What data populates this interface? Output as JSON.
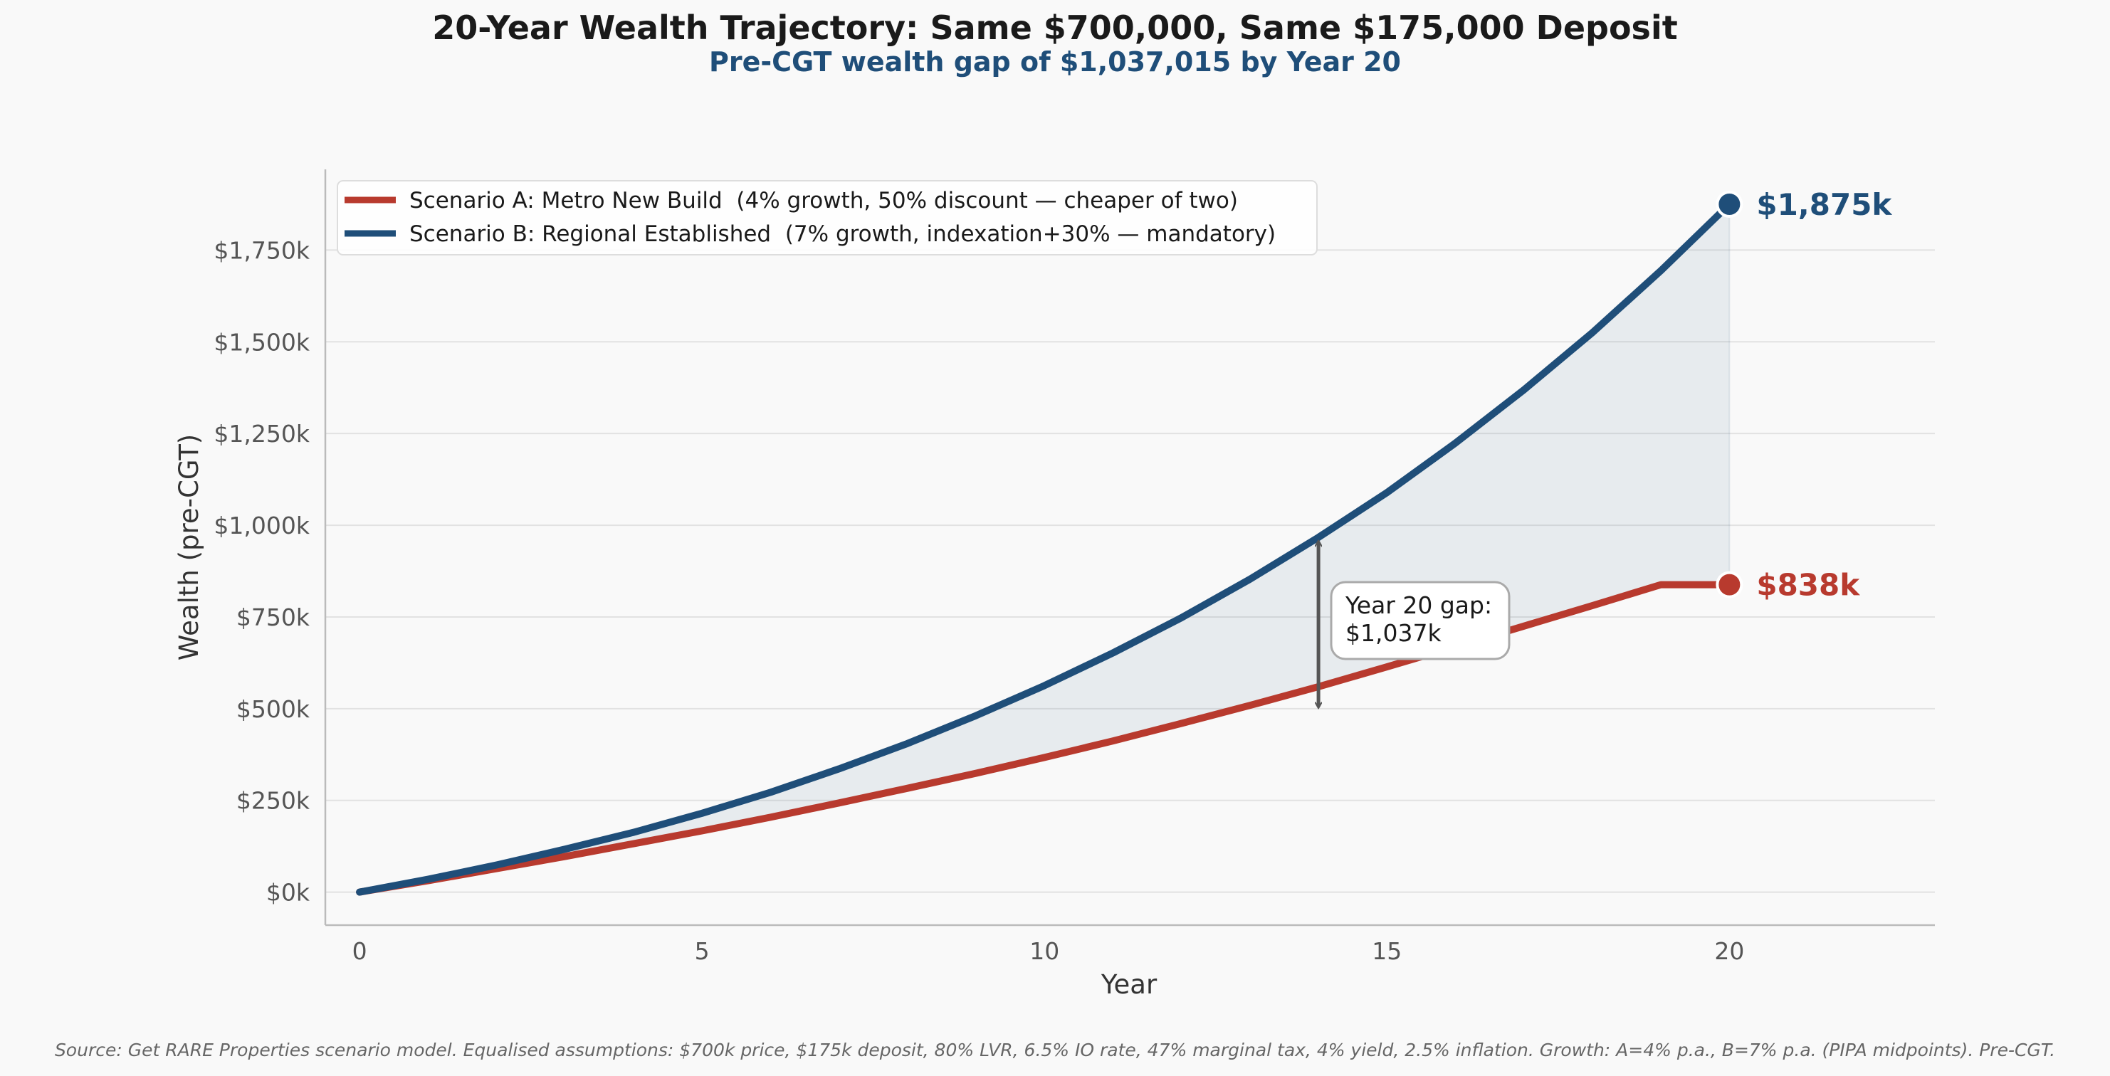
{
  "chart_data": {
    "type": "line",
    "title": "20-Year Wealth Trajectory: Same $700,000, Same $175,000 Deposit",
    "subtitle": "Pre-CGT wealth gap of $1,037,015 by Year 20",
    "xlabel": "Year",
    "ylabel": "Wealth (pre-CGT)",
    "xlim": [
      -0.5,
      23
    ],
    "ylim": [
      -90,
      1970
    ],
    "x_ticks": [
      0,
      5,
      10,
      15,
      20
    ],
    "y_ticks": [
      0,
      250,
      500,
      750,
      1000,
      1250,
      1500,
      1750
    ],
    "y_tick_labels": [
      "$0k",
      "$250k",
      "$500k",
      "$750k",
      "$1,000k",
      "$1,250k",
      "$1,500k",
      "$1,750k"
    ],
    "grid": "horizontal",
    "legend_position": "top-left",
    "x": [
      0,
      1,
      2,
      3,
      4,
      5,
      6,
      7,
      8,
      9,
      10,
      11,
      12,
      13,
      14,
      15,
      16,
      17,
      18,
      19,
      20
    ],
    "series": [
      {
        "name": "Scenario A: Metro New Build  (4% growth, 50% discount — cheaper of two)",
        "color": "#b83a2e",
        "values": [
          0,
          31,
          64,
          97,
          132,
          167,
          204,
          243,
          283,
          324,
          367,
          412,
          460,
          509,
          560,
          614,
          669,
          725,
          781,
          838,
          838
        ],
        "end_label": "$838k"
      },
      {
        "name": "Scenario B: Regional Established  (7% growth, indexation+30% — mandatory)",
        "color": "#1f4e79",
        "values": [
          0,
          35,
          74,
          117,
          163,
          215,
          272,
          336,
          405,
          481,
          563,
          652,
          748,
          853,
          967,
          1089,
          1224,
          1369,
          1525,
          1694,
          1875
        ],
        "end_label": "$1,875k"
      }
    ],
    "shaded_gap": {
      "from_x": 0,
      "to_x": 20,
      "color": "#1f4e79"
    },
    "annotation": {
      "text_line1": "Year 20 gap:",
      "text_line2": "$1,037k",
      "arrow_x": 14,
      "arrow_from": 505,
      "arrow_to": 955
    },
    "source": "Source: Get RARE Properties scenario model. Equalised assumptions: $700k price, $175k deposit, 80% LVR, 6.5% IO rate, 47% marginal tax, 4% yield, 2.5% inflation. Growth: A=4% p.a., B=7% p.a. (PIPA midpoints). Pre-CGT."
  }
}
